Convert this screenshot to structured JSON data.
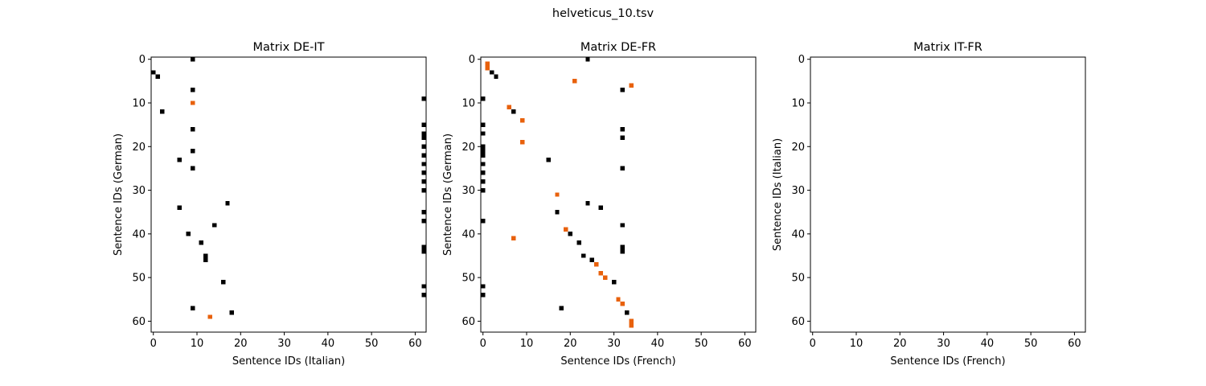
{
  "figure_title": "helveticus_10.tsv",
  "colors": {
    "match": "#000000",
    "highlight": "#e8610c",
    "background": "#ffffff",
    "frame": "#000000"
  },
  "chart_data": [
    {
      "type": "heatmap",
      "title": "Matrix DE-IT",
      "xlabel": "Sentence IDs (Italian)",
      "ylabel": "Sentence IDs (German)",
      "xlim": [
        -0.5,
        62.5
      ],
      "ylim": [
        62.5,
        -0.5
      ],
      "xticks": [
        0,
        10,
        20,
        30,
        40,
        50,
        60
      ],
      "yticks": [
        0,
        10,
        20,
        30,
        40,
        50,
        60
      ],
      "grid": false,
      "cells_black": [
        [
          9,
          0
        ],
        [
          0,
          3
        ],
        [
          1,
          4
        ],
        [
          9,
          7
        ],
        [
          62,
          9
        ],
        [
          2,
          12
        ],
        [
          62,
          15
        ],
        [
          9,
          16
        ],
        [
          62,
          17
        ],
        [
          62,
          18
        ],
        [
          62,
          20
        ],
        [
          9,
          21
        ],
        [
          62,
          22
        ],
        [
          6,
          23
        ],
        [
          62,
          24
        ],
        [
          9,
          25
        ],
        [
          62,
          26
        ],
        [
          62,
          28
        ],
        [
          62,
          30
        ],
        [
          17,
          33
        ],
        [
          6,
          34
        ],
        [
          62,
          35
        ],
        [
          62,
          37
        ],
        [
          14,
          38
        ],
        [
          8,
          40
        ],
        [
          11,
          42
        ],
        [
          62,
          43
        ],
        [
          62,
          44
        ],
        [
          12,
          45
        ],
        [
          12,
          46
        ],
        [
          16,
          51
        ],
        [
          62,
          52
        ],
        [
          62,
          54
        ],
        [
          9,
          57
        ],
        [
          18,
          58
        ]
      ],
      "cells_orange": [
        [
          9,
          10
        ],
        [
          13,
          59
        ]
      ]
    },
    {
      "type": "heatmap",
      "title": "Matrix DE-FR",
      "xlabel": "Sentence IDs (French)",
      "ylabel": "Sentence IDs (German)",
      "xlim": [
        -0.5,
        62.5
      ],
      "ylim": [
        62.5,
        -0.5
      ],
      "xticks": [
        0,
        10,
        20,
        30,
        40,
        50,
        60
      ],
      "yticks": [
        0,
        10,
        20,
        30,
        40,
        50,
        60
      ],
      "grid": false,
      "cells_black": [
        [
          24,
          0
        ],
        [
          2,
          3
        ],
        [
          3,
          4
        ],
        [
          32,
          7
        ],
        [
          0,
          9
        ],
        [
          7,
          12
        ],
        [
          0,
          15
        ],
        [
          32,
          16
        ],
        [
          0,
          17
        ],
        [
          32,
          18
        ],
        [
          0,
          20
        ],
        [
          0,
          21
        ],
        [
          0,
          22
        ],
        [
          15,
          23
        ],
        [
          0,
          24
        ],
        [
          32,
          25
        ],
        [
          0,
          26
        ],
        [
          0,
          28
        ],
        [
          0,
          30
        ],
        [
          24,
          33
        ],
        [
          27,
          34
        ],
        [
          17,
          35
        ],
        [
          0,
          37
        ],
        [
          32,
          38
        ],
        [
          20,
          40
        ],
        [
          22,
          42
        ],
        [
          32,
          43
        ],
        [
          32,
          44
        ],
        [
          23,
          45
        ],
        [
          25,
          46
        ],
        [
          30,
          51
        ],
        [
          0,
          52
        ],
        [
          0,
          54
        ],
        [
          18,
          57
        ],
        [
          33,
          58
        ]
      ],
      "cells_orange": [
        [
          1,
          1
        ],
        [
          1,
          2
        ],
        [
          21,
          5
        ],
        [
          34,
          6
        ],
        [
          6,
          11
        ],
        [
          9,
          14
        ],
        [
          9,
          19
        ],
        [
          17,
          31
        ],
        [
          19,
          39
        ],
        [
          7,
          41
        ],
        [
          26,
          47
        ],
        [
          27,
          49
        ],
        [
          28,
          50
        ],
        [
          31,
          55
        ],
        [
          32,
          56
        ],
        [
          34,
          60
        ],
        [
          34,
          61
        ]
      ]
    },
    {
      "type": "heatmap",
      "title": "Matrix IT-FR",
      "xlabel": "Sentence IDs (French)",
      "ylabel": "Sentence IDs (Italian)",
      "xlim": [
        -0.5,
        62.5
      ],
      "ylim": [
        62.5,
        -0.5
      ],
      "xticks": [
        0,
        10,
        20,
        30,
        40,
        50,
        60
      ],
      "yticks": [
        0,
        10,
        20,
        30,
        40,
        50,
        60
      ],
      "grid": false,
      "cells_black": [],
      "cells_orange": []
    }
  ]
}
